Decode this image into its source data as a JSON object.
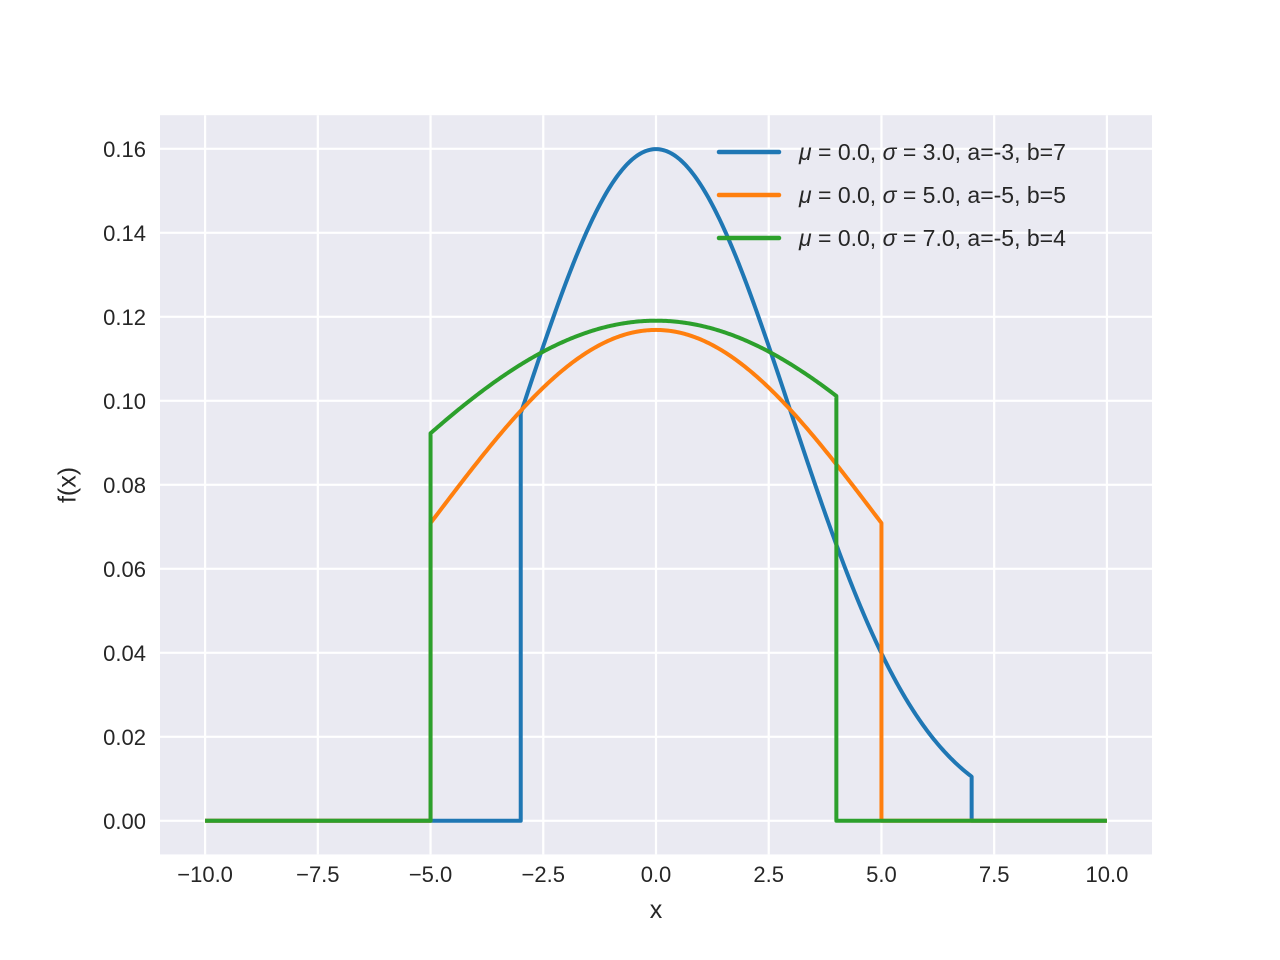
{
  "figure": {
    "background_color": "#ffffff",
    "axes_background_color": "#eaeaf2",
    "grid_color": "#ffffff",
    "text_color": "#262626"
  },
  "chart_data": {
    "type": "line",
    "title": "",
    "xlabel": "x",
    "ylabel": "f(x)",
    "xlim": [
      -11,
      11
    ],
    "ylim": [
      -0.008,
      0.168
    ],
    "grid": true,
    "x_ticks": {
      "values": [
        -10.0,
        -7.5,
        -5.0,
        -2.5,
        0.0,
        2.5,
        5.0,
        7.5,
        10.0
      ],
      "labels": [
        "−10.0",
        "−7.5",
        "−5.0",
        "−2.5",
        "0.0",
        "2.5",
        "5.0",
        "7.5",
        "10.0"
      ]
    },
    "y_ticks": {
      "values": [
        0.0,
        0.02,
        0.04,
        0.06,
        0.08,
        0.1,
        0.12,
        0.14,
        0.16
      ],
      "labels": [
        "0.00",
        "0.02",
        "0.04",
        "0.06",
        "0.08",
        "0.10",
        "0.12",
        "0.14",
        "0.16"
      ]
    },
    "legend": {
      "position": "upper right",
      "frame": false
    },
    "x_sample_range": [
      -10,
      10
    ],
    "series": [
      {
        "label": "μ = 0.0, σ = 3.0, a=-3, b=7",
        "label_parts": [
          {
            "text": "μ",
            "italic": true
          },
          {
            "text": " = 0.0, ",
            "italic": false
          },
          {
            "text": "σ",
            "italic": true
          },
          {
            "text": " = 3.0, a=-3, b=7",
            "italic": false
          }
        ],
        "color": "#1f77b4",
        "distribution": "truncated_normal",
        "mu": 0.0,
        "sigma": 3.0,
        "a": -3,
        "b": 7,
        "key_points": {
          "peak_x": 0.0,
          "peak_y": 0.16,
          "pdf_at_a": 0.097,
          "pdf_at_b": 0.011
        }
      },
      {
        "label": "μ = 0.0, σ = 5.0, a=-5, b=5",
        "label_parts": [
          {
            "text": "μ",
            "italic": true
          },
          {
            "text": " = 0.0, ",
            "italic": false
          },
          {
            "text": "σ",
            "italic": true
          },
          {
            "text": " = 5.0, a=-5, b=5",
            "italic": false
          }
        ],
        "color": "#ff7f0e",
        "distribution": "truncated_normal",
        "mu": 0.0,
        "sigma": 5.0,
        "a": -5,
        "b": 5,
        "key_points": {
          "peak_x": 0.0,
          "peak_y": 0.117,
          "pdf_at_a": 0.071,
          "pdf_at_b": 0.071
        }
      },
      {
        "label": "μ = 0.0, σ = 7.0, a=-5, b=4",
        "label_parts": [
          {
            "text": "μ",
            "italic": true
          },
          {
            "text": " = 0.0, ",
            "italic": false
          },
          {
            "text": "σ",
            "italic": true
          },
          {
            "text": " = 7.0, a=-5, b=4",
            "italic": false
          }
        ],
        "color": "#2ca02c",
        "distribution": "truncated_normal",
        "mu": 0.0,
        "sigma": 7.0,
        "a": -5,
        "b": 4,
        "key_points": {
          "peak_x": 0.0,
          "peak_y": 0.119,
          "pdf_at_a": 0.092,
          "pdf_at_b": 0.101
        }
      }
    ]
  }
}
